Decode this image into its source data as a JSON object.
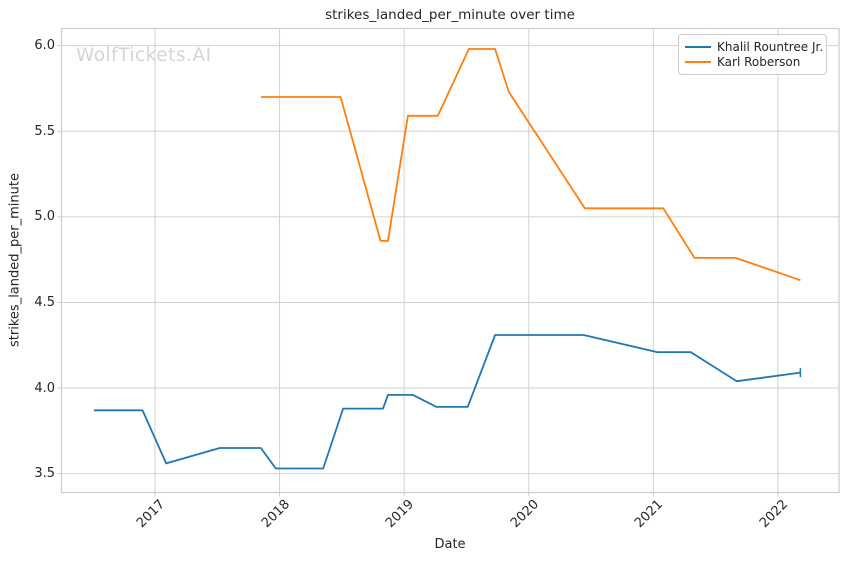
{
  "chart_data": {
    "type": "line",
    "title": "strikes_landed_per_minute over time",
    "xlabel": "Date",
    "ylabel": "strikes_landed_per_minute",
    "watermark": "WolfTickets.AI",
    "grid": true,
    "legend_position": "upper right",
    "xlim": [
      2016.25,
      2022.49
    ],
    "ylim": [
      3.39,
      6.1
    ],
    "xticks": [
      2017,
      2018,
      2019,
      2020,
      2021,
      2022
    ],
    "xtick_labels": [
      "2017",
      "2018",
      "2019",
      "2020",
      "2021",
      "2022"
    ],
    "xtick_rotation": 45,
    "yticks": [
      3.5,
      4.0,
      4.5,
      5.0,
      5.5,
      6.0
    ],
    "ytick_labels": [
      "3.5",
      "4.0",
      "4.5",
      "5.0",
      "5.5",
      "6.0"
    ],
    "colors": {
      "grid": "#d2d2d2",
      "spine": "#cccccc",
      "text": "#262626",
      "watermark": "#d5d5d5",
      "background": "#ffffff"
    },
    "series": [
      {
        "name": "Khalil Rountree Jr.",
        "color": "#1f77b4",
        "end_marker": true,
        "x": [
          2016.51,
          2016.9,
          2017.09,
          2017.52,
          2017.85,
          2017.97,
          2018.35,
          2018.51,
          2018.83,
          2018.87,
          2019.07,
          2019.26,
          2019.51,
          2019.73,
          2020.44,
          2021.03,
          2021.3,
          2021.67,
          2022.18
        ],
        "y": [
          3.87,
          3.87,
          3.56,
          3.65,
          3.65,
          3.53,
          3.53,
          3.88,
          3.88,
          3.96,
          3.96,
          3.89,
          3.89,
          4.31,
          4.31,
          4.21,
          4.21,
          4.04,
          4.09
        ]
      },
      {
        "name": "Karl Roberson",
        "color": "#ff7f0e",
        "end_marker": false,
        "x": [
          2017.85,
          2018.49,
          2018.81,
          2018.87,
          2019.03,
          2019.27,
          2019.52,
          2019.73,
          2019.84,
          2020.45,
          2021.08,
          2021.33,
          2021.66,
          2022.18
        ],
        "y": [
          5.7,
          5.7,
          4.86,
          4.86,
          5.59,
          5.59,
          5.98,
          5.98,
          5.73,
          5.05,
          5.05,
          4.76,
          4.76,
          4.63
        ]
      }
    ]
  }
}
